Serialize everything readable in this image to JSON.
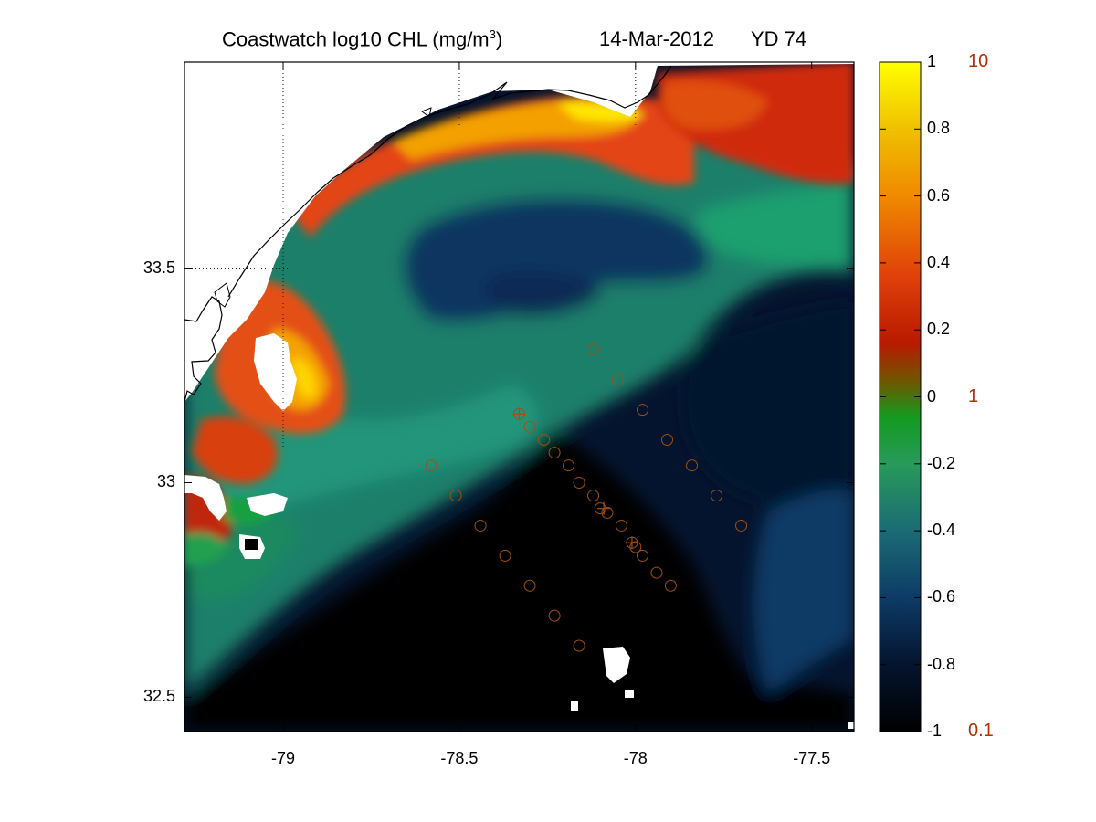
{
  "title": {
    "main": "Coastwatch  log10  CHL (mg/m",
    "superscript": "3",
    "close": ")",
    "date": "14-Mar-2012",
    "yearday": "YD 74"
  },
  "chart_data": {
    "type": "heatmap",
    "variable": "log10 CHL (mg/m3)",
    "xlim": [
      -79.28,
      -77.38
    ],
    "ylim": [
      32.42,
      33.98
    ],
    "xticks": [
      -79,
      -78.5,
      -78,
      -77.5
    ],
    "xtick_labels": [
      "-79",
      "-78.5",
      "-78",
      "-77.5"
    ],
    "yticks": [
      32.5,
      33,
      33.5
    ],
    "ytick_labels": [
      "32.5",
      "33",
      "33.5"
    ],
    "grid_lines": {
      "x": [
        -79,
        -78.5,
        -78
      ],
      "y": [
        33.5
      ]
    },
    "colorbar": {
      "range": [
        -1,
        1
      ],
      "ticks": [
        1,
        0.8,
        0.6,
        0.4,
        0.2,
        0,
        -0.2,
        -0.4,
        -0.6,
        -0.8,
        -1
      ],
      "tick_labels": [
        "1",
        "0.8",
        "0.6",
        "0.4",
        "0.2",
        "0",
        "-0.2",
        "-0.4",
        "-0.6",
        "-0.8",
        "-1"
      ],
      "linear_labels": [
        {
          "value": 1,
          "label": "10"
        },
        {
          "value": 0,
          "label": "1"
        },
        {
          "value": -1,
          "label": "0.1"
        }
      ],
      "colors": [
        "#000000",
        "#0a2a5a",
        "#1a5a7a",
        "#2a8a6a",
        "#18a030",
        "#0a8a00",
        "#b02000",
        "#e03000",
        "#f07000",
        "#f0c000",
        "#ffff00"
      ]
    },
    "stations": {
      "line_1": [
        [
          -78.33,
          33.16
        ],
        [
          -78.3,
          33.13
        ],
        [
          -78.26,
          33.1
        ],
        [
          -78.23,
          33.07
        ],
        [
          -78.19,
          33.04
        ],
        [
          -78.16,
          33.0
        ],
        [
          -78.12,
          32.97
        ],
        [
          -78.1,
          32.94
        ],
        [
          -78.08,
          32.93
        ],
        [
          -78.04,
          32.9
        ],
        [
          -78.01,
          32.86
        ],
        [
          -78.0,
          32.85
        ],
        [
          -77.98,
          32.83
        ],
        [
          -77.94,
          32.79
        ],
        [
          -77.9,
          32.76
        ]
      ],
      "line_2": [
        [
          -78.12,
          33.31
        ],
        [
          -78.05,
          33.24
        ],
        [
          -77.98,
          33.17
        ],
        [
          -77.91,
          33.1
        ],
        [
          -77.84,
          33.04
        ],
        [
          -77.77,
          32.97
        ],
        [
          -77.7,
          32.9
        ]
      ],
      "line_3": [
        [
          -78.58,
          33.04
        ],
        [
          -78.51,
          32.97
        ],
        [
          -78.44,
          32.9
        ],
        [
          -78.37,
          32.83
        ],
        [
          -78.3,
          32.76
        ],
        [
          -78.23,
          32.69
        ],
        [
          -78.16,
          32.62
        ]
      ],
      "crossed_stations": [
        [
          -78.33,
          33.16
        ],
        [
          -78.09,
          32.94
        ],
        [
          -78.01,
          32.86
        ]
      ]
    },
    "marker_color": "#a05010"
  }
}
